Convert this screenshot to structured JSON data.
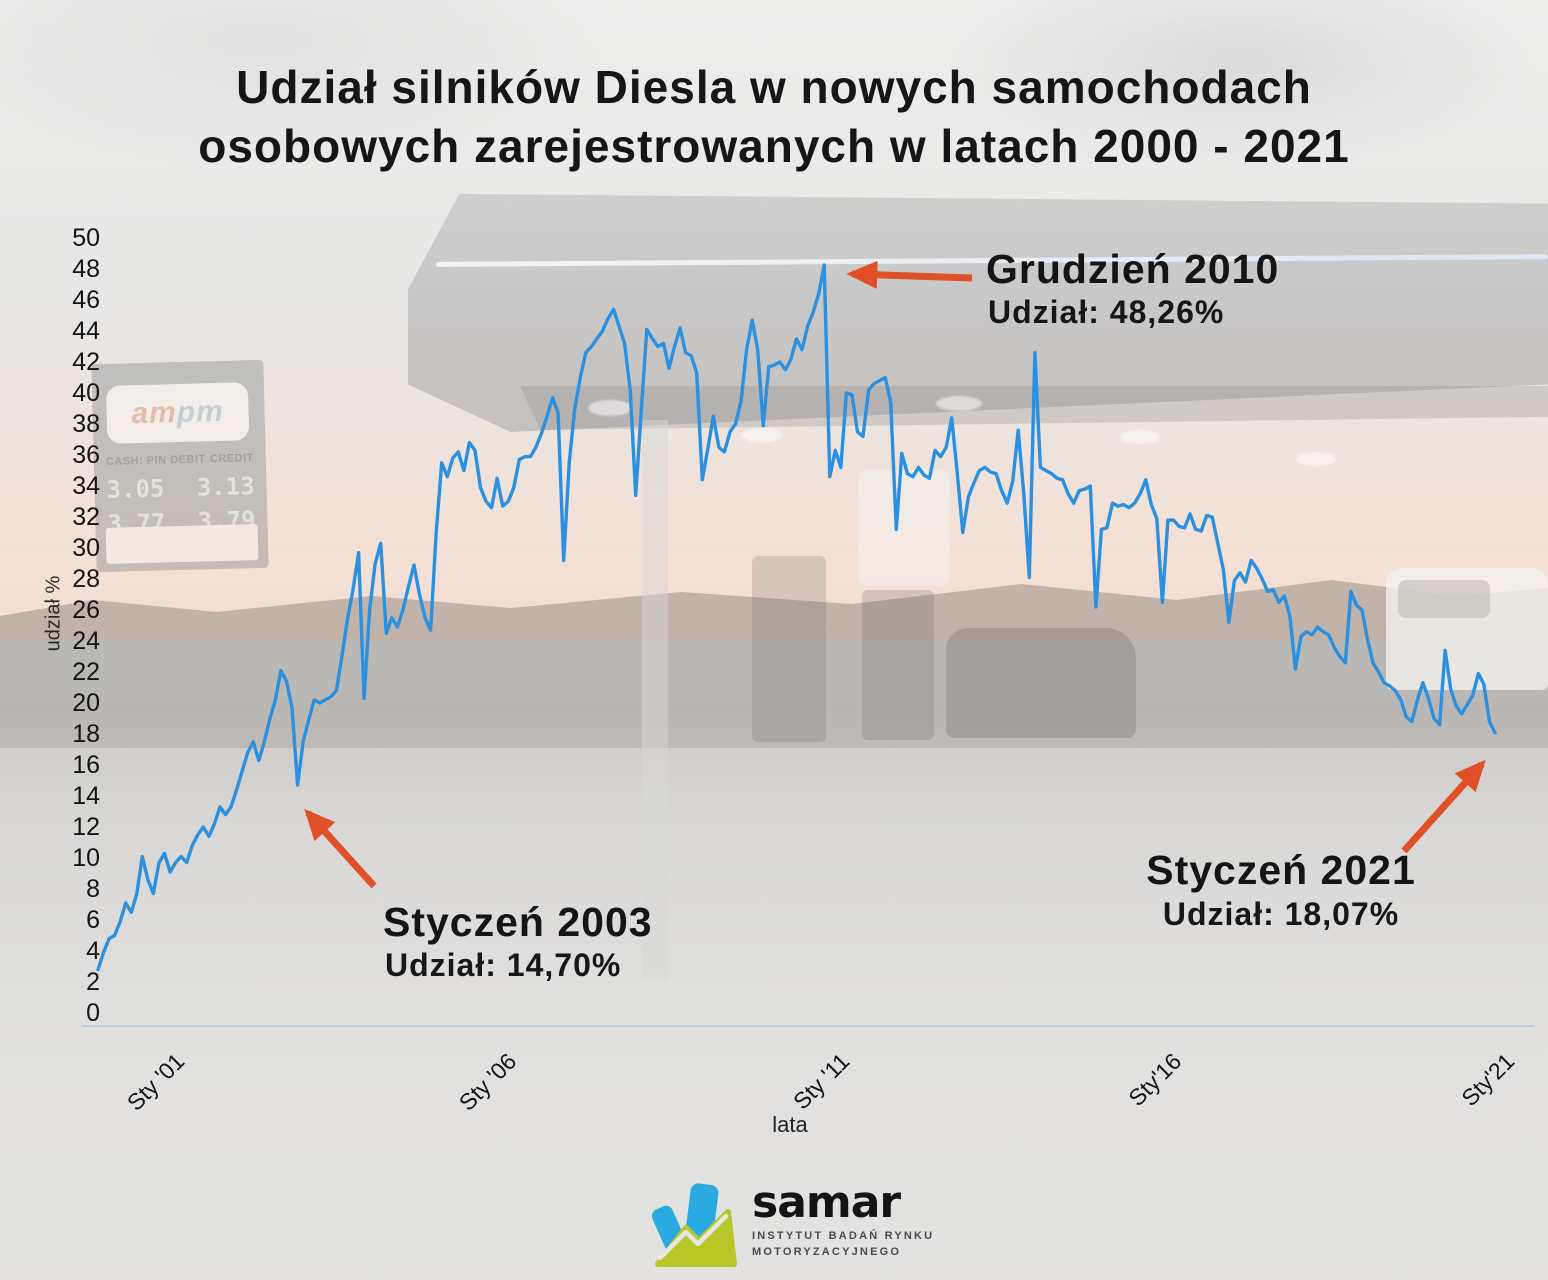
{
  "title": {
    "line1": "Udział silników Diesla w nowych samochodach",
    "line2": "osobowych zarejestrowanych w latach 2000 - 2021"
  },
  "chart_data": {
    "type": "line",
    "title": "Udział silników Diesla w nowych samochodach osobowych zarejestrowanych w latach 2000 - 2021",
    "xlabel": "lata",
    "ylabel": "udział %",
    "ylim": [
      0,
      50
    ],
    "ytick_step": 2,
    "grid": false,
    "legend": "none",
    "frequency": "monthly",
    "x_start": "2000-01",
    "x_end": "2021-01",
    "x_tick_labels": [
      "Sty '01",
      "Sty '06",
      "Sty '11",
      "Sty'16",
      "Sty'21"
    ],
    "x_tick_months": [
      12,
      72,
      132,
      192,
      252
    ],
    "line_color": "#2b90e0",
    "series": [
      {
        "name": "udział silników Diesla (%)",
        "values": [
          2.8,
          3.9,
          4.8,
          5.0,
          5.9,
          7.1,
          6.5,
          7.7,
          10.1,
          8.6,
          7.7,
          9.7,
          10.3,
          9.1,
          9.7,
          10.1,
          9.7,
          10.8,
          11.5,
          12.0,
          11.4,
          12.2,
          13.3,
          12.8,
          13.3,
          14.4,
          15.6,
          16.8,
          17.5,
          16.3,
          17.5,
          19.0,
          20.2,
          22.1,
          21.4,
          19.7,
          14.7,
          17.5,
          18.9,
          20.2,
          20.0,
          20.2,
          20.4,
          20.8,
          23.0,
          25.4,
          27.3,
          29.7,
          20.3,
          26.0,
          29.0,
          30.3,
          24.5,
          25.5,
          24.9,
          26.0,
          27.5,
          28.9,
          27.0,
          25.5,
          24.7,
          31.0,
          35.5,
          34.6,
          35.8,
          36.2,
          35.0,
          36.8,
          36.3,
          33.9,
          33.0,
          32.6,
          34.5,
          32.7,
          33.0,
          33.9,
          35.7,
          35.9,
          35.9,
          36.5,
          37.4,
          38.5,
          39.7,
          38.7,
          29.2,
          35.5,
          39.0,
          41.0,
          42.6,
          43.0,
          43.5,
          44.0,
          44.8,
          45.4,
          44.3,
          43.2,
          40.2,
          33.4,
          38.9,
          44.1,
          43.5,
          43.0,
          43.2,
          41.6,
          43.0,
          44.2,
          42.6,
          42.4,
          41.3,
          34.4,
          36.4,
          38.5,
          36.5,
          36.2,
          37.5,
          38.0,
          39.5,
          42.8,
          44.7,
          42.8,
          37.9,
          41.7,
          41.8,
          42.0,
          41.5,
          42.2,
          43.5,
          42.8,
          44.3,
          45.2,
          46.4,
          48.26,
          34.6,
          36.3,
          35.2,
          40.0,
          39.9,
          37.5,
          37.2,
          40.2,
          40.6,
          40.8,
          41.0,
          39.4,
          31.2,
          36.1,
          34.8,
          34.6,
          35.2,
          34.7,
          34.5,
          36.3,
          35.9,
          36.5,
          38.4,
          34.8,
          31.0,
          33.3,
          34.2,
          35.0,
          35.2,
          34.9,
          34.8,
          33.7,
          32.9,
          34.3,
          37.6,
          33.5,
          28.1,
          42.6,
          35.2,
          35.0,
          34.8,
          34.5,
          34.4,
          33.5,
          32.9,
          33.7,
          33.8,
          34.0,
          26.2,
          31.2,
          31.3,
          32.9,
          32.7,
          32.8,
          32.6,
          32.9,
          33.5,
          34.4,
          32.8,
          31.9,
          26.5,
          31.8,
          31.8,
          31.4,
          31.3,
          32.2,
          31.2,
          31.1,
          32.1,
          32.0,
          30.3,
          28.6,
          25.2,
          27.9,
          28.4,
          27.8,
          29.2,
          28.7,
          28.0,
          27.2,
          27.3,
          26.5,
          26.9,
          25.6,
          22.2,
          24.3,
          24.6,
          24.4,
          24.9,
          24.6,
          24.4,
          23.6,
          23.0,
          22.6,
          27.2,
          26.3,
          26.0,
          24.1,
          22.6,
          22.0,
          21.3,
          21.1,
          20.8,
          20.2,
          19.1,
          18.8,
          20.2,
          21.3,
          20.3,
          19.0,
          18.6,
          23.4,
          20.9,
          19.8,
          19.3,
          19.9,
          20.5,
          21.9,
          21.2,
          18.8,
          18.07
        ]
      }
    ],
    "annotations": [
      {
        "label": "Grudzień 2010",
        "value_label": "Udział: 48,26%",
        "month": "2010-12",
        "value": 48.26
      },
      {
        "label": "Styczeń 2003",
        "value_label": "Udział: 14,70%",
        "month": "2003-01",
        "value": 14.7
      },
      {
        "label": "Styczeń 2021",
        "value_label": "Udział: 18,07%",
        "month": "2021-01",
        "value": 18.07
      }
    ]
  },
  "colors": {
    "line_blue": "#2b90e0",
    "accent_orange": "#df4f28",
    "title_black": "#161616",
    "axis_line": "#bad0e4",
    "logo_blue": "#29abe2",
    "logo_green": "#b5c827"
  },
  "logo": {
    "name": "samar",
    "subtitle_line1": "INSTYTUT BADAŃ RYNKU",
    "subtitle_line2": "MOTORYZACYJNEGO"
  },
  "background_photo": {
    "sign_brand_am": "am",
    "sign_brand_pm": "pm",
    "sign_cash_label": "CASH: PIN DEBIT",
    "sign_credit_label": "CREDIT",
    "price_row1_left": "3.05",
    "price_row1_right": "3.13",
    "price_row2_left": "3.77",
    "price_row2_right": "3.79"
  }
}
